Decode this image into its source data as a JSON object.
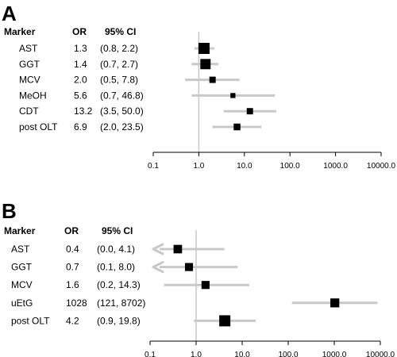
{
  "colors": {
    "ci_line": "#c8c8c8",
    "ref_line": "#c8c8c8",
    "marker": "#000000"
  },
  "chart_data": [
    {
      "type": "forest",
      "panel": "A",
      "headers": {
        "marker": "Marker",
        "or": "OR",
        "ci": "95% CI"
      },
      "xscale": "log",
      "xlim": [
        0.1,
        10000
      ],
      "xticks": [
        "0.1",
        "1.0",
        "10.0",
        "100.0",
        "1000.0",
        "10000.0"
      ],
      "reference_line": 1,
      "rows": [
        {
          "marker": "AST",
          "or_label": "1.3",
          "ci_label": "(0.8, 2.2)",
          "or": 1.3,
          "lo": 0.8,
          "hi": 2.2,
          "weight": 1.0
        },
        {
          "marker": "GGT",
          "or_label": "1.4",
          "ci_label": "(0.7, 2.7)",
          "or": 1.4,
          "lo": 0.7,
          "hi": 2.7,
          "weight": 0.9
        },
        {
          "marker": "MCV",
          "or_label": "2.0",
          "ci_label": "(0.5, 7.8)",
          "or": 2.0,
          "lo": 0.5,
          "hi": 7.8,
          "weight": 0.45
        },
        {
          "marker": "MeOH",
          "or_label": "5.6",
          "ci_label": "(0.7, 46.8)",
          "or": 5.6,
          "lo": 0.7,
          "hi": 46.8,
          "weight": 0.3
        },
        {
          "marker": "CDT",
          "or_label": "13.2",
          "ci_label": "(3.5, 50.0)",
          "or": 13.2,
          "lo": 3.5,
          "hi": 50.0,
          "weight": 0.45
        },
        {
          "marker": "post OLT",
          "or_label": "6.9",
          "ci_label": "(2.0, 23.5)",
          "or": 6.9,
          "lo": 2.0,
          "hi": 23.5,
          "weight": 0.5
        }
      ]
    },
    {
      "type": "forest",
      "panel": "B",
      "headers": {
        "marker": "Marker",
        "or": "OR",
        "ci": "95% CI"
      },
      "xscale": "log",
      "xlim": [
        0.1,
        10000
      ],
      "xticks": [
        "0.1",
        "1.0",
        "10.0",
        "100.0",
        "1000.0",
        "10000.0"
      ],
      "reference_line": 1,
      "rows": [
        {
          "marker": "AST",
          "or_label": "0.4",
          "ci_label": "(0.0, 4.1)",
          "or": 0.4,
          "lo": 0.0,
          "hi": 4.1,
          "weight": 0.7,
          "lower_truncated": true
        },
        {
          "marker": "GGT",
          "or_label": "0.7",
          "ci_label": "(0.1, 8.0)",
          "or": 0.7,
          "lo": 0.1,
          "hi": 8.0,
          "weight": 0.65,
          "lower_truncated": true
        },
        {
          "marker": "MCV",
          "or_label": "1.6",
          "ci_label": "(0.2, 14.3)",
          "or": 1.6,
          "lo": 0.2,
          "hi": 14.3,
          "weight": 0.65
        },
        {
          "marker": "uEtG",
          "or_label": "1028",
          "ci_label": "(121, 8702)",
          "or": 1028,
          "lo": 121,
          "hi": 8702,
          "weight": 0.75
        },
        {
          "marker": "post OLT",
          "or_label": "4.2",
          "ci_label": "(0.9, 19.8)",
          "or": 4.2,
          "lo": 0.9,
          "hi": 19.8,
          "weight": 1.0
        }
      ]
    }
  ]
}
